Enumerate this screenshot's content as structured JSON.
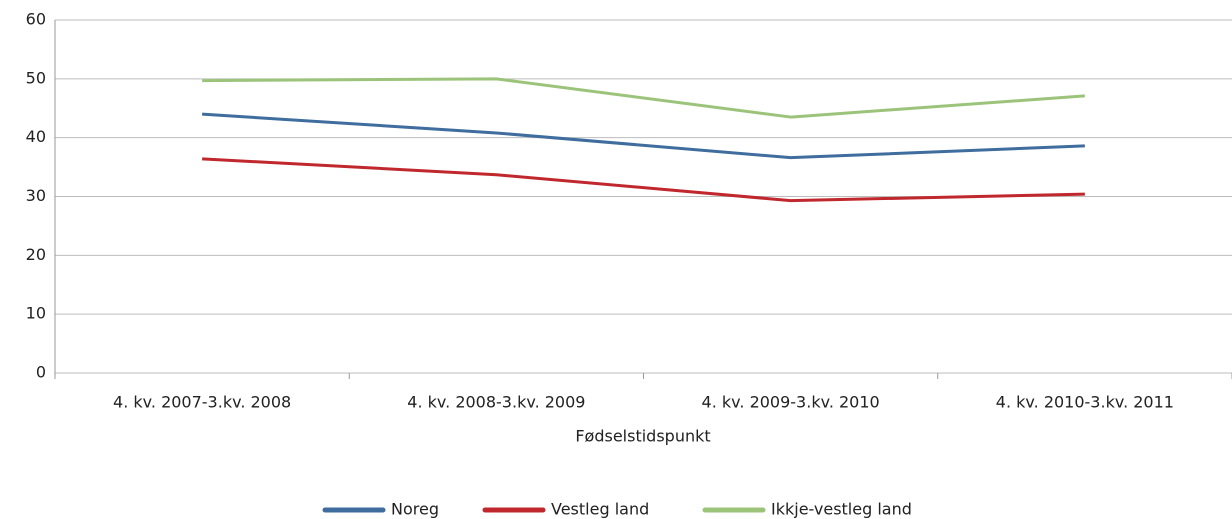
{
  "chart_data": {
    "type": "line",
    "x_label": "Fødselstidspunkt",
    "categories": [
      "4. kv. 2007-3.kv. 2008",
      "4. kv. 2008-3.kv. 2009",
      "4. kv. 2009-3.kv. 2010",
      "4. kv. 2010-3.kv. 2011"
    ],
    "series": [
      {
        "name": "Noreg",
        "color": "#3f6d9e",
        "values": [
          44.0,
          40.8,
          36.6,
          38.6
        ]
      },
      {
        "name": "Vestleg land",
        "color": "#c0282d",
        "values": [
          36.4,
          33.7,
          29.3,
          30.4
        ]
      },
      {
        "name": "Ikkje-vestleg land",
        "color": "#9bc47a",
        "values": [
          49.7,
          50.0,
          43.5,
          47.1
        ]
      }
    ],
    "ylim": [
      0,
      60
    ],
    "yticks": [
      0,
      10,
      20,
      30,
      40,
      50,
      60
    ],
    "grid": true,
    "legend": "bottom"
  }
}
